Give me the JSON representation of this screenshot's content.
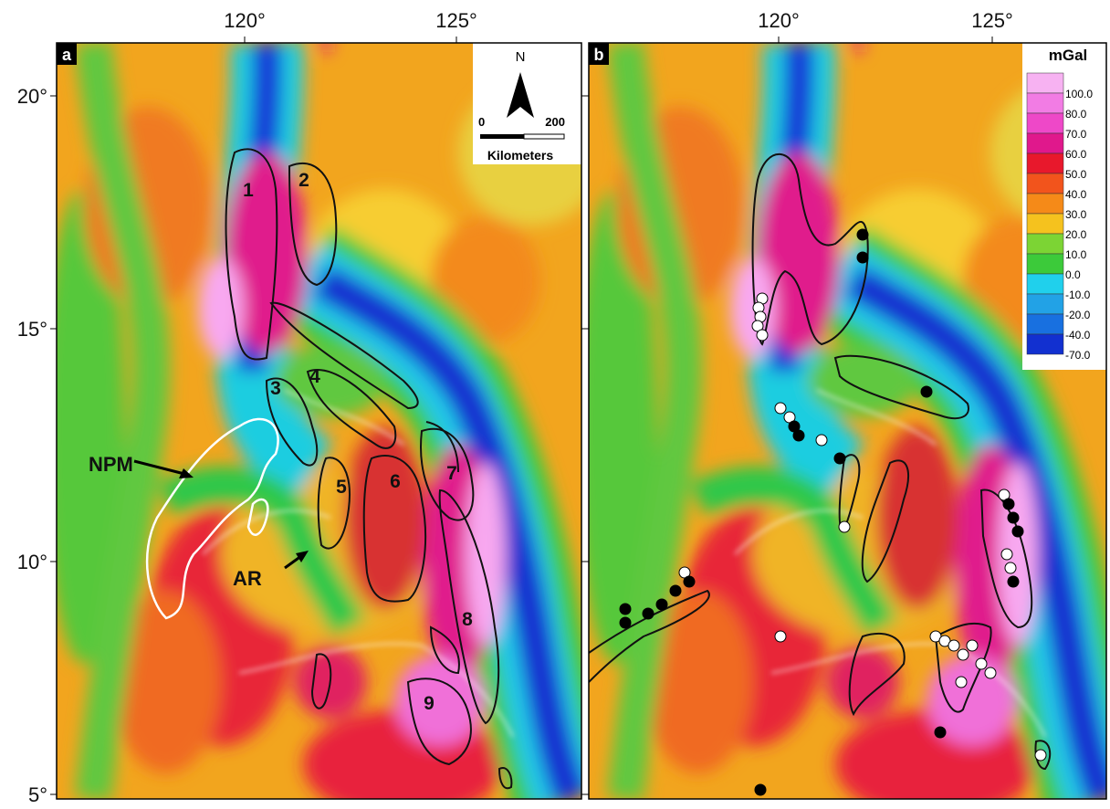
{
  "panels": [
    {
      "label": "a",
      "x_ticks": [
        "120°",
        "125°"
      ],
      "y_ticks": [
        "20°",
        "15°",
        "10°",
        "5°"
      ]
    },
    {
      "label": "b",
      "x_ticks": [
        "120°",
        "125°"
      ]
    }
  ],
  "north_arrow": {
    "label": "N",
    "scale_start": "0",
    "scale_end": "200",
    "unit": "Kilometers"
  },
  "zone_labels": [
    "1",
    "2",
    "3",
    "4",
    "5",
    "6",
    "7",
    "8",
    "9"
  ],
  "annotations": [
    "NPM",
    "AR"
  ],
  "legend": {
    "title": "mGal",
    "labels": [
      "100.0",
      "80.0",
      "70.0",
      "60.0",
      "50.0",
      "40.0",
      "30.0",
      "20.0",
      "10.0",
      "0.0",
      "-10.0",
      "-20.0",
      "-40.0",
      "-70.0"
    ]
  }
}
